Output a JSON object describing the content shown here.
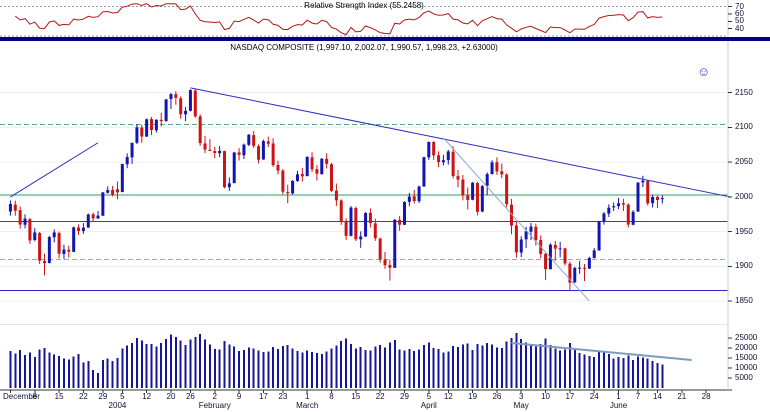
{
  "chart_data": {
    "type": "candlestick",
    "instrument": "NASDAQ COMPOSITE",
    "grid": "horizontal-faint",
    "legend_position": "none",
    "rsi": {
      "title": "Relative Strength Index (55.2458)",
      "value": 55.2458,
      "ylim": [
        30,
        75
      ],
      "axis_labels": [
        70,
        60,
        50,
        40
      ],
      "levels": [
        {
          "value": 70,
          "style": "dotted"
        },
        {
          "value": 30,
          "style": "dotted"
        }
      ],
      "line_color": "#b01818"
    },
    "price": {
      "title": "NASDAQ COMPOSITE (1,997.10, 2,002.07, 1,990.57, 1,998.23, +2.63000)",
      "last_quote": {
        "open": 1997.1,
        "high": 2002.07,
        "low": 1990.57,
        "close": 1998.23,
        "change": 2.63
      },
      "ylim": [
        1820,
        2200
      ],
      "axis_labels": [
        2150,
        2100,
        2050,
        2000,
        1950,
        1900,
        1850
      ],
      "up_color": "#1414b4",
      "down_color": "#cc1414",
      "smiley": "☺",
      "horizontal_lines": [
        {
          "value": 2104,
          "color": "#55aa7f",
          "style": "dashed"
        },
        {
          "value": 2003,
          "color": "#2f9e68",
          "style": "solid"
        },
        {
          "value": 1965,
          "color": "#4a4a4a",
          "style": "solid"
        },
        {
          "value": 1910,
          "color": "#d9a05b",
          "style": "dashed"
        },
        {
          "value": 1865,
          "color": "#2929cc",
          "style": "solid"
        }
      ],
      "trendlines": [
        {
          "i1": 0,
          "p1": 2000,
          "i2": 18,
          "p2": 2078,
          "color": "#2b2bbe",
          "width": 1
        },
        {
          "i1": 37,
          "p1": 2157,
          "i2": 148,
          "p2": 2000,
          "color": "#2b2bbe",
          "width": 1
        },
        {
          "i1": 89,
          "p1": 2085,
          "i2": 119,
          "p2": 1850,
          "color": "#8fa8d0",
          "width": 1
        }
      ]
    },
    "volume": {
      "ylim": [
        0,
        30000
      ],
      "axis_labels": [
        25000,
        20000,
        15000,
        10000,
        5000
      ],
      "bar_color": "#16169a",
      "trendline": {
        "i1": 103,
        "v1": 22500,
        "i2": 140,
        "v2": 14000,
        "color": "#7e9cc0",
        "width": 2
      }
    },
    "x_axis": {
      "week_labels": [
        {
          "i": 0,
          "t": "December"
        },
        {
          "i": 5,
          "t": "8"
        },
        {
          "i": 10,
          "t": "15"
        },
        {
          "i": 15,
          "t": "22"
        },
        {
          "i": 19,
          "t": "29"
        },
        {
          "i": 23,
          "t": "5"
        },
        {
          "i": 28,
          "t": "12"
        },
        {
          "i": 33,
          "t": "20"
        },
        {
          "i": 37,
          "t": "26"
        },
        {
          "i": 42,
          "t": "2"
        },
        {
          "i": 47,
          "t": "9"
        },
        {
          "i": 52,
          "t": "17"
        },
        {
          "i": 56,
          "t": "23"
        },
        {
          "i": 61,
          "t": "1"
        },
        {
          "i": 66,
          "t": "8"
        },
        {
          "i": 71,
          "t": "15"
        },
        {
          "i": 76,
          "t": "22"
        },
        {
          "i": 81,
          "t": "29"
        },
        {
          "i": 86,
          "t": "5"
        },
        {
          "i": 90,
          "t": "12"
        },
        {
          "i": 95,
          "t": "19"
        },
        {
          "i": 100,
          "t": "26"
        },
        {
          "i": 105,
          "t": "3"
        },
        {
          "i": 110,
          "t": "10"
        },
        {
          "i": 115,
          "t": "17"
        },
        {
          "i": 120,
          "t": "24"
        },
        {
          "i": 125,
          "t": "1"
        },
        {
          "i": 129,
          "t": "7"
        },
        {
          "i": 133,
          "t": "14"
        },
        {
          "i": 138,
          "t": "21"
        },
        {
          "i": 143,
          "t": "28"
        }
      ],
      "month_labels": [
        {
          "i": 22,
          "t": "2004"
        },
        {
          "i": 42,
          "t": "February"
        },
        {
          "i": 61,
          "t": "March"
        },
        {
          "i": 86,
          "t": "April"
        },
        {
          "i": 105,
          "t": "May"
        },
        {
          "i": 125,
          "t": "June"
        }
      ]
    },
    "candles": [
      [
        1979,
        1995,
        1973,
        1989.8,
        18500
      ],
      [
        1989,
        1994.6,
        1973,
        1980.1,
        17200
      ],
      [
        1981,
        1986.4,
        1954.3,
        1960.3,
        18900
      ],
      [
        1960,
        1975,
        1954.8,
        1968.8,
        16400
      ],
      [
        1968,
        1969.9,
        1932.5,
        1937.4,
        17800
      ],
      [
        1938,
        1955.2,
        1936.1,
        1948.9,
        15600
      ],
      [
        1948,
        1949.6,
        1903.4,
        1908.3,
        19300
      ],
      [
        1908,
        1918.4,
        1887.1,
        1904.7,
        20100
      ],
      [
        1905,
        1944,
        1904.2,
        1942.3,
        17700
      ],
      [
        1942,
        1953.3,
        1934.6,
        1949,
        16800
      ],
      [
        1948,
        1950.1,
        1911.6,
        1918.3,
        15900
      ],
      [
        1918,
        1931.2,
        1910.5,
        1924.3,
        14700
      ],
      [
        1924,
        1929.8,
        1912.9,
        1921.3,
        14200
      ],
      [
        1921,
        1957.4,
        1920.4,
        1956.2,
        15800
      ],
      [
        1956,
        1960.5,
        1945.2,
        1951,
        16900
      ],
      [
        1951,
        1962.3,
        1946.8,
        1955.8,
        12800
      ],
      [
        1956,
        1976.1,
        1955.4,
        1974.8,
        13500
      ],
      [
        1975,
        1977.3,
        1965.1,
        1969.2,
        8900
      ],
      [
        1969,
        1979.8,
        1968.3,
        1973.1,
        7400
      ],
      [
        1973,
        2007.1,
        1972.9,
        2006.5,
        13900
      ],
      [
        2006,
        2015.2,
        2004.9,
        2009.9,
        14800
      ],
      [
        2010,
        2015.9,
        2000.9,
        2003.4,
        13600
      ],
      [
        2011,
        2022.4,
        1996.7,
        2006.7,
        15100
      ],
      [
        2007,
        2047.8,
        2006.9,
        2047.4,
        19800
      ],
      [
        2047,
        2062.6,
        2041.4,
        2057.4,
        21300
      ],
      [
        2057,
        2078.4,
        2047.5,
        2077.7,
        22600
      ],
      [
        2078,
        2105.1,
        2076.2,
        2100.3,
        24900
      ],
      [
        2100,
        2103.5,
        2077.9,
        2087,
        23800
      ],
      [
        2087,
        2112.9,
        2086.3,
        2111.8,
        22100
      ],
      [
        2112,
        2115,
        2089.1,
        2096.4,
        21900
      ],
      [
        2096,
        2111.9,
        2092.7,
        2111.1,
        20700
      ],
      [
        2111,
        2121.2,
        2101.4,
        2109.1,
        22400
      ],
      [
        2109,
        2140.7,
        2108.6,
        2140.5,
        24600
      ],
      [
        2141,
        2149.9,
        2126.5,
        2148,
        26800
      ],
      [
        2148,
        2152.3,
        2132.7,
        2142.5,
        25400
      ],
      [
        2142,
        2144.9,
        2112.5,
        2119,
        23700
      ],
      [
        2119,
        2129.5,
        2109.3,
        2123.9,
        21600
      ],
      [
        2124,
        2155,
        2123.1,
        2153.8,
        24200
      ],
      [
        2153,
        2154.9,
        2113.9,
        2116,
        25600
      ],
      [
        2116,
        2118.8,
        2073.5,
        2077.4,
        27100
      ],
      [
        2077,
        2087.8,
        2063,
        2068.2,
        24300
      ],
      [
        2068,
        2083.2,
        2065.9,
        2066.2,
        21800
      ],
      [
        2066,
        2071.9,
        2055.7,
        2063.2,
        19600
      ],
      [
        2063,
        2073.4,
        2057.3,
        2066.2,
        19200
      ],
      [
        2066,
        2066.6,
        2012.4,
        2014.1,
        23400
      ],
      [
        2014,
        2028,
        2008.8,
        2019.6,
        21700
      ],
      [
        2020,
        2064.9,
        2019.6,
        2064,
        20800
      ],
      [
        2064,
        2070.2,
        2052.4,
        2060.6,
        18400
      ],
      [
        2060,
        2076.9,
        2054.6,
        2075.3,
        18900
      ],
      [
        2075,
        2090.4,
        2073.2,
        2089.7,
        20300
      ],
      [
        2089,
        2094.9,
        2070.5,
        2073.6,
        19700
      ],
      [
        2073,
        2075.7,
        2048.3,
        2053.6,
        18800
      ],
      [
        2054,
        2082.6,
        2053.4,
        2080.4,
        17900
      ],
      [
        2080,
        2086.9,
        2071.7,
        2076.5,
        18300
      ],
      [
        2077,
        2084.5,
        2043.2,
        2045.9,
        20600
      ],
      [
        2046,
        2052.3,
        2032.6,
        2037.9,
        19400
      ],
      [
        2038,
        2040.1,
        2003.8,
        2007.5,
        20900
      ],
      [
        2007,
        2017.4,
        1991.1,
        2005.4,
        21500
      ],
      [
        2005,
        2024.3,
        2003.7,
        2023,
        19800
      ],
      [
        2023,
        2037.6,
        2021.8,
        2032.6,
        18600
      ],
      [
        2033,
        2041.8,
        2022.2,
        2029.8,
        17700
      ],
      [
        2030,
        2058.3,
        2029.7,
        2057.8,
        18800
      ],
      [
        2057,
        2064.3,
        2036,
        2039.7,
        18100
      ],
      [
        2040,
        2045.9,
        2023.7,
        2033.4,
        17600
      ],
      [
        2033,
        2055.9,
        2031.9,
        2055.1,
        16900
      ],
      [
        2055,
        2062.9,
        2040.9,
        2047.6,
        18200
      ],
      [
        2047,
        2048.8,
        2006.9,
        2008.8,
        19700
      ],
      [
        2009,
        2019.3,
        1987.1,
        1995.2,
        21200
      ],
      [
        1995,
        1996.5,
        1959.8,
        1964.2,
        23600
      ],
      [
        1964,
        1969.2,
        1938.1,
        1943.9,
        24800
      ],
      [
        1944,
        1986.9,
        1943.2,
        1984.7,
        21900
      ],
      [
        1984,
        1986.2,
        1936.6,
        1939.2,
        19800
      ],
      [
        1939,
        1950.4,
        1926.8,
        1943.1,
        20400
      ],
      [
        1943,
        1978.2,
        1942.6,
        1976.8,
        19100
      ],
      [
        1977,
        1983.5,
        1956.1,
        1962.4,
        18700
      ],
      [
        1962,
        1968.8,
        1936.9,
        1940.5,
        20800
      ],
      [
        1940,
        1941.6,
        1905.5,
        1909.9,
        21600
      ],
      [
        1910,
        1920.8,
        1896.6,
        1901.8,
        20200
      ],
      [
        1902,
        1909.5,
        1879.6,
        1898.1,
        22700
      ],
      [
        1898,
        1968.3,
        1897.7,
        1967.2,
        23900
      ],
      [
        1967,
        1972.5,
        1951.4,
        1960,
        19300
      ],
      [
        1960,
        1993.9,
        1959.4,
        1992.6,
        18800
      ],
      [
        1993,
        2006,
        1986.7,
        2000.6,
        19600
      ],
      [
        2001,
        2010.1,
        1990.6,
        1994.2,
        18400
      ],
      [
        1994,
        2016.4,
        1991.2,
        2015,
        19200
      ],
      [
        2015,
        2057.9,
        2014.7,
        2057.2,
        21400
      ],
      [
        2057,
        2079.9,
        2053.3,
        2079.1,
        22800
      ],
      [
        2079,
        2080.3,
        2053.5,
        2059.9,
        20100
      ],
      [
        2060,
        2065.6,
        2042.9,
        2050.2,
        19500
      ],
      [
        2050,
        2060.8,
        2045.4,
        2052.9,
        17800
      ],
      [
        2053,
        2067.8,
        2046.5,
        2065.5,
        18300
      ],
      [
        2065,
        2073,
        2026.7,
        2030.1,
        20900
      ],
      [
        2030,
        2038.7,
        2013.8,
        2024.9,
        20400
      ],
      [
        2025,
        2031.4,
        1995.1,
        2002.2,
        21700
      ],
      [
        2002,
        2013.6,
        1982,
        1995.7,
        22300
      ],
      [
        1996,
        2021.5,
        1995.2,
        2020.4,
        18900
      ],
      [
        2020,
        2021.9,
        1973.4,
        1978.6,
        22100
      ],
      [
        1979,
        2017.2,
        1978.1,
        2015.6,
        21300
      ],
      [
        2016,
        2035.3,
        2002.5,
        2032.9,
        22600
      ],
      [
        2033,
        2052.8,
        2032.2,
        2049.8,
        21800
      ],
      [
        2050,
        2057,
        2031.9,
        2036.8,
        20200
      ],
      [
        2037,
        2048,
        2027,
        2032.5,
        19900
      ],
      [
        2032,
        2034.2,
        1985,
        1989.5,
        23200
      ],
      [
        1989,
        1997.2,
        1946.2,
        1958.8,
        25100
      ],
      [
        1959,
        1964.1,
        1912.6,
        1920.2,
        27400
      ],
      [
        1920,
        1943.4,
        1913.6,
        1938.7,
        24600
      ],
      [
        1939,
        1957.2,
        1926.7,
        1950.5,
        22800
      ],
      [
        1950,
        1962.5,
        1938,
        1957.3,
        21500
      ],
      [
        1957,
        1961.6,
        1930.3,
        1937.7,
        20700
      ],
      [
        1938,
        1944.6,
        1911.7,
        1918,
        21900
      ],
      [
        1918,
        1919.3,
        1880.3,
        1896.1,
        24800
      ],
      [
        1896,
        1933.2,
        1895.8,
        1931.4,
        21600
      ],
      [
        1931,
        1936.5,
        1908.4,
        1925.6,
        19800
      ],
      [
        1926,
        1935.3,
        1913,
        1926,
        18700
      ],
      [
        1926,
        1926.8,
        1901.3,
        1904.3,
        19200
      ],
      [
        1904,
        1906.8,
        1865.4,
        1876.6,
        22400
      ],
      [
        1877,
        1899.5,
        1876.3,
        1897.8,
        18900
      ],
      [
        1898,
        1907.9,
        1889.4,
        1898.2,
        17600
      ],
      [
        1898,
        1903.4,
        1878.9,
        1896.6,
        16800
      ],
      [
        1897,
        1913.9,
        1896.2,
        1912.1,
        15900
      ],
      [
        1912,
        1926.4,
        1911.6,
        1923,
        15400
      ],
      [
        1923,
        1965.4,
        1922.7,
        1964.7,
        18200
      ],
      [
        1965,
        1978.3,
        1960.1,
        1976.2,
        17800
      ],
      [
        1976,
        1989.3,
        1971.2,
        1984.5,
        16900
      ],
      [
        1985,
        1992,
        1979.8,
        1986.7,
        14800
      ],
      [
        1987,
        1998.6,
        1982.4,
        1990.8,
        15600
      ],
      [
        1991,
        1997.4,
        1979.7,
        1989,
        14900
      ],
      [
        1989,
        1990.6,
        1956.1,
        1960.3,
        16200
      ],
      [
        1960,
        1981,
        1959,
        1978.6,
        14100
      ],
      [
        1979,
        2021.3,
        1978.6,
        2020.6,
        15800
      ],
      [
        2021,
        2030.5,
        2014.3,
        2023.5,
        15300
      ],
      [
        2023,
        2024.9,
        1987.7,
        1990.6,
        14700
      ],
      [
        1991,
        2003.1,
        1984.8,
        1999.9,
        13600
      ],
      [
        2000,
        2001.8,
        1983.9,
        1995.6,
        12400
      ],
      [
        1997.1,
        2002.07,
        1990.57,
        1998.23,
        11800
      ]
    ]
  }
}
